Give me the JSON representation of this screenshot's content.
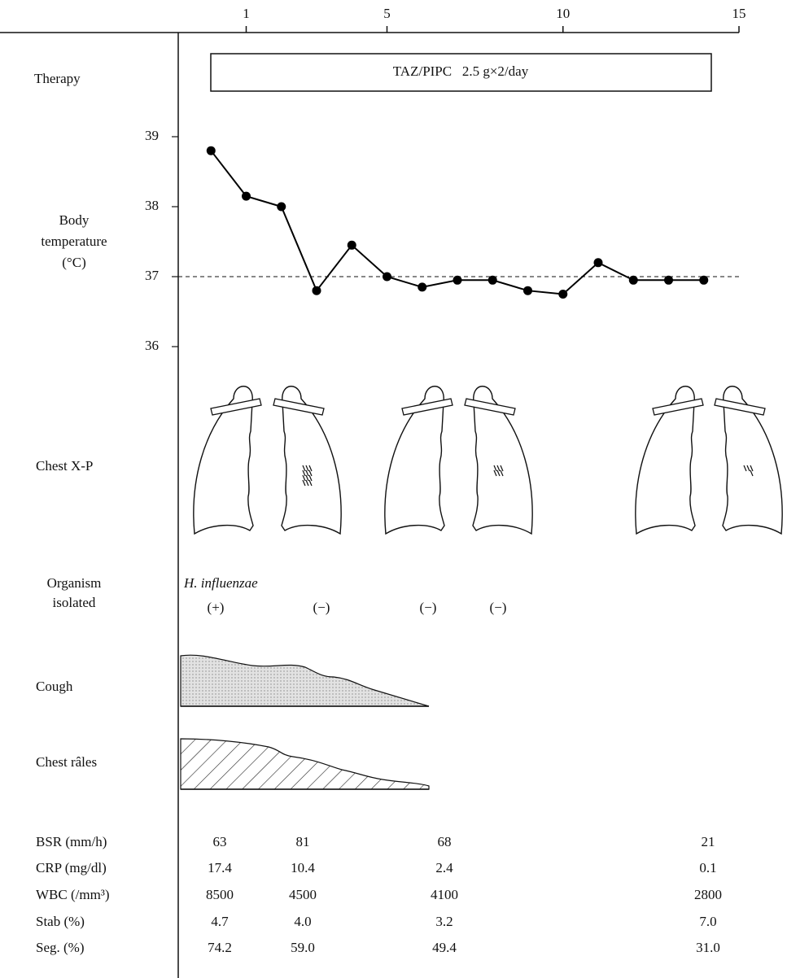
{
  "chart_data": {
    "type": "line",
    "x": [
      0,
      1,
      2,
      3,
      4,
      5,
      6,
      7,
      8,
      9,
      10,
      11,
      12,
      13,
      14
    ],
    "xlim": [
      -1,
      15
    ],
    "xticks": [
      1,
      5,
      10,
      15
    ],
    "ylim": [
      36,
      39
    ],
    "yticks": [
      36,
      37,
      38,
      39
    ],
    "reference_line": 37,
    "y_label": [
      "Body",
      "temperature",
      "(°C)"
    ],
    "series": [
      {
        "color": "#000000",
        "values": [
          38.8,
          38.15,
          38.0,
          36.8,
          37.45,
          37.0,
          36.85,
          36.95,
          36.95,
          36.8,
          36.75,
          37.2,
          36.95,
          36.95,
          36.95
        ]
      }
    ]
  },
  "therapy": {
    "label": "Therapy",
    "regimen": "TAZ/PIPC   2.5 g×2/day"
  },
  "chest_xp": {
    "label": "Chest X-P"
  },
  "organism": {
    "label": [
      "Organism",
      "isolated"
    ],
    "name": "H. influenzae",
    "results": [
      "(+)",
      "(−)",
      "(−)",
      "(−)"
    ]
  },
  "cough": {
    "label": "Cough"
  },
  "rales": {
    "label": "Chest râles"
  },
  "labs": {
    "rows": [
      {
        "label": "BSR (mm/h)",
        "values": [
          "63",
          "81",
          "68",
          "21"
        ]
      },
      {
        "label": "CRP (mg/dl)",
        "values": [
          "17.4",
          "10.4",
          "2.4",
          "0.1"
        ]
      },
      {
        "label": "WBC (/mm³)",
        "values": [
          "8500",
          "4500",
          "4100",
          "2800"
        ]
      },
      {
        "label": "Stab (%)",
        "values": [
          "4.7",
          "4.0",
          "3.2",
          "7.0"
        ]
      },
      {
        "label": "Seg. (%)",
        "values": [
          "74.2",
          "59.0",
          "49.4",
          "31.0"
        ]
      }
    ]
  }
}
